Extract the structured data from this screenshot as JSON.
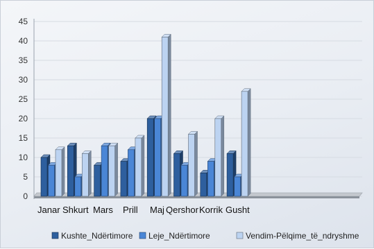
{
  "chart_data": {
    "type": "bar",
    "categories": [
      "Janar",
      "Shkurt",
      "Mars",
      "Prill",
      "Maj",
      "Qershor",
      "Korrik",
      "Gusht"
    ],
    "series": [
      {
        "name": "Kushte_Ndërtimore",
        "color": "#2e5f9e",
        "values": [
          10,
          13,
          8,
          9,
          20,
          11,
          6,
          11
        ]
      },
      {
        "name": "Leje_Ndërtimore",
        "color": "#4a86d6",
        "values": [
          8,
          5,
          13,
          12,
          20,
          8,
          9,
          5
        ]
      },
      {
        "name": "Vendim-Pëlqime_të_ndryshme",
        "color": "#bcd3f1",
        "values": [
          12,
          11,
          13,
          15,
          41,
          16,
          20,
          27
        ]
      }
    ],
    "y_ticks": [
      "0",
      "5",
      "10",
      "15",
      "20",
      "25",
      "30",
      "35",
      "40",
      "45"
    ],
    "ylim": [
      0,
      45
    ],
    "grid": true,
    "legend_position": "bottom",
    "bar_style": "3d-clustered"
  }
}
